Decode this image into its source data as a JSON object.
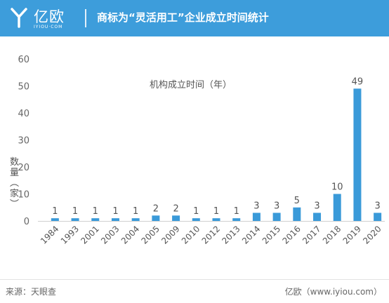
{
  "header": {
    "logo_name": "亿欧",
    "logo_sub": "IYIOU·COM",
    "title": "商标为“灵活用工”企业成立时间统计"
  },
  "chart_data": {
    "type": "bar",
    "title": "机构成立时间（年）",
    "xlabel": "",
    "ylabel": "数量（家）",
    "categories": [
      "1984",
      "1993",
      "2001",
      "2003",
      "2004",
      "2005",
      "2009",
      "2010",
      "2012",
      "2013",
      "2014",
      "2015",
      "2016",
      "2017",
      "2018",
      "2019",
      "2020"
    ],
    "values": [
      1,
      1,
      1,
      1,
      1,
      2,
      2,
      1,
      1,
      1,
      3,
      3,
      5,
      3,
      10,
      49,
      3
    ],
    "ylim": [
      0,
      60
    ],
    "yticks": [
      0,
      10,
      20,
      30,
      40,
      50,
      60
    ],
    "grid": false,
    "bar_color": "#3a9ad9"
  },
  "footer": {
    "source": "来源：天眼查",
    "site": "亿欧（www.iyiou.com）"
  },
  "colors": {
    "header_bg": "#3d9ddb",
    "bar": "#3a9ad9"
  }
}
